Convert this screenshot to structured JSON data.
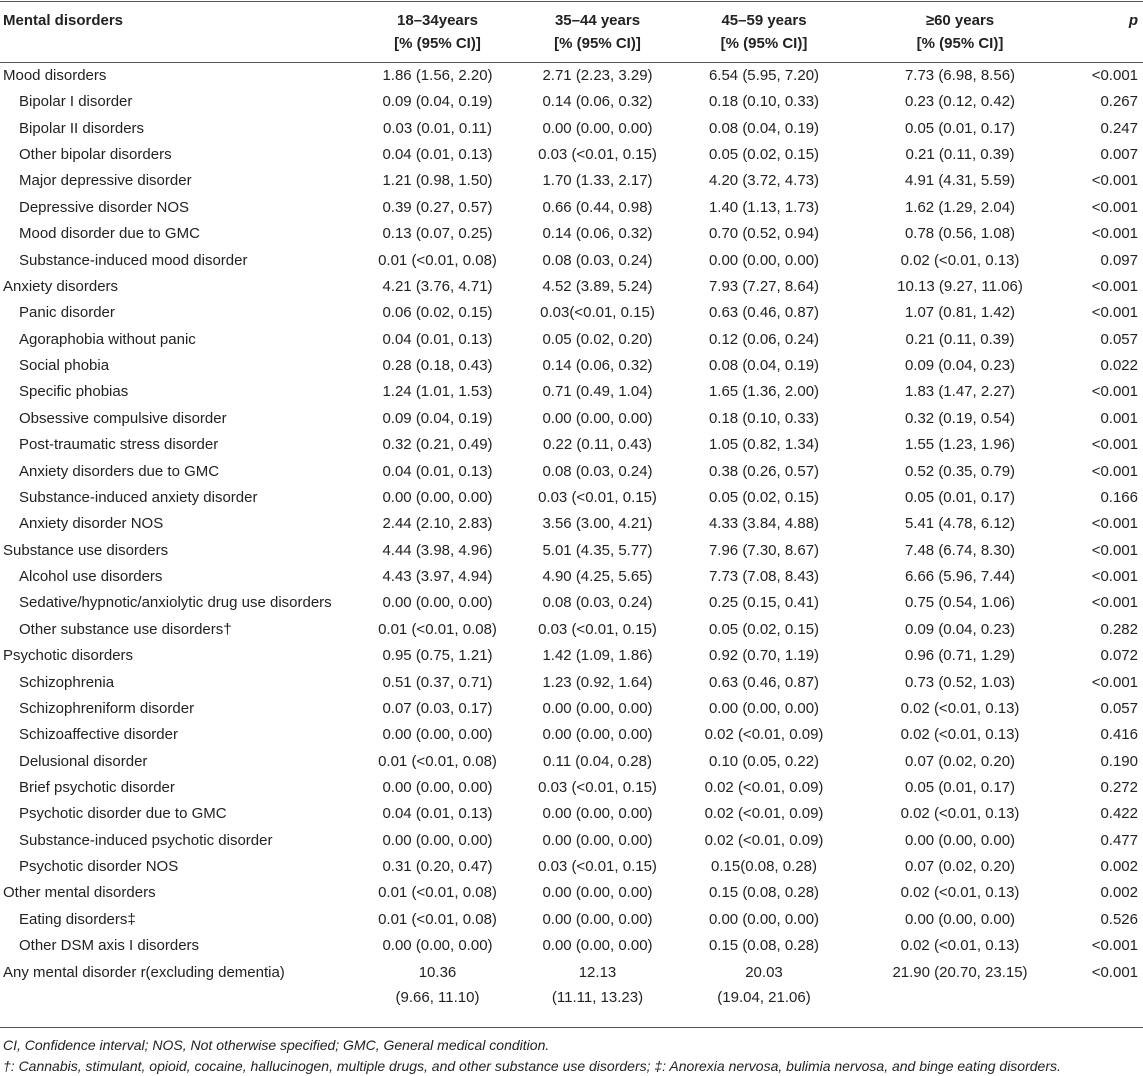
{
  "table": {
    "header": [
      "Mental disorders",
      "18–34years\n[% (95% CI)]",
      "35–44 years\n[% (95% CI)]",
      "45–59 years\n[% (95% CI)]",
      "≥60 years\n[% (95% CI)]",
      "p"
    ],
    "groups": [
      {
        "row": [
          "Mood disorders",
          "1.86 (1.56, 2.20)",
          "2.71 (2.23, 3.29)",
          "6.54 (5.95, 7.20)",
          "7.73 (6.98, 8.56)",
          "<0.001"
        ],
        "items": [
          [
            "Bipolar I disorder",
            "0.09 (0.04, 0.19)",
            "0.14 (0.06, 0.32)",
            "0.18 (0.10, 0.33)",
            "0.23 (0.12, 0.42)",
            "0.267"
          ],
          [
            "Bipolar II disorders",
            "0.03 (0.01, 0.11)",
            "0.00 (0.00, 0.00)",
            "0.08 (0.04, 0.19)",
            "0.05 (0.01, 0.17)",
            "0.247"
          ],
          [
            "Other bipolar disorders",
            "0.04 (0.01, 0.13)",
            "0.03 (<0.01, 0.15)",
            "0.05 (0.02, 0.15)",
            "0.21 (0.11, 0.39)",
            "0.007"
          ],
          [
            "Major depressive disorder",
            "1.21 (0.98, 1.50)",
            "1.70 (1.33, 2.17)",
            "4.20 (3.72, 4.73)",
            "4.91 (4.31, 5.59)",
            "<0.001"
          ],
          [
            "Depressive disorder NOS",
            "0.39 (0.27, 0.57)",
            "0.66 (0.44, 0.98)",
            "1.40 (1.13, 1.73)",
            "1.62 (1.29, 2.04)",
            "<0.001"
          ],
          [
            "Mood disorder due to GMC",
            "0.13 (0.07, 0.25)",
            "0.14 (0.06, 0.32)",
            "0.70 (0.52, 0.94)",
            "0.78 (0.56, 1.08)",
            "<0.001"
          ],
          [
            "Substance-induced mood disorder",
            "0.01 (<0.01, 0.08)",
            "0.08 (0.03, 0.24)",
            "0.00 (0.00, 0.00)",
            "0.02 (<0.01, 0.13)",
            "0.097"
          ]
        ]
      },
      {
        "row": [
          "Anxiety disorders",
          "4.21 (3.76, 4.71)",
          "4.52 (3.89, 5.24)",
          "7.93 (7.27, 8.64)",
          "10.13 (9.27, 11.06)",
          "<0.001"
        ],
        "items": [
          [
            "Panic disorder",
            "0.06 (0.02, 0.15)",
            "0.03(<0.01, 0.15)",
            "0.63 (0.46, 0.87)",
            "1.07 (0.81, 1.42)",
            "<0.001"
          ],
          [
            "Agoraphobia without panic",
            "0.04 (0.01, 0.13)",
            "0.05 (0.02, 0.20)",
            "0.12 (0.06, 0.24)",
            "0.21 (0.11, 0.39)",
            "0.057"
          ],
          [
            "Social phobia",
            "0.28 (0.18, 0.43)",
            "0.14 (0.06, 0.32)",
            "0.08 (0.04, 0.19)",
            "0.09 (0.04, 0.23)",
            "0.022"
          ],
          [
            "Specific phobias",
            "1.24 (1.01, 1.53)",
            "0.71 (0.49, 1.04)",
            "1.65 (1.36, 2.00)",
            "1.83 (1.47, 2.27)",
            "<0.001"
          ],
          [
            "Obsessive compulsive disorder",
            "0.09 (0.04, 0.19)",
            "0.00 (0.00, 0.00)",
            "0.18 (0.10, 0.33)",
            "0.32 (0.19, 0.54)",
            "0.001"
          ],
          [
            "Post-traumatic stress disorder",
            "0.32 (0.21, 0.49)",
            "0.22 (0.11, 0.43)",
            "1.05 (0.82, 1.34)",
            "1.55 (1.23, 1.96)",
            "<0.001"
          ],
          [
            "Anxiety disorders due to GMC",
            "0.04 (0.01, 0.13)",
            "0.08 (0.03, 0.24)",
            "0.38 (0.26, 0.57)",
            "0.52 (0.35, 0.79)",
            "<0.001"
          ],
          [
            "Substance-induced anxiety disorder",
            "0.00 (0.00, 0.00)",
            "0.03 (<0.01, 0.15)",
            "0.05 (0.02, 0.15)",
            "0.05 (0.01, 0.17)",
            "0.166"
          ],
          [
            "Anxiety disorder NOS",
            "2.44 (2.10, 2.83)",
            "3.56 (3.00, 4.21)",
            "4.33 (3.84, 4.88)",
            "5.41 (4.78, 6.12)",
            "<0.001"
          ]
        ]
      },
      {
        "row": [
          "Substance use disorders",
          "4.44 (3.98, 4.96)",
          "5.01 (4.35, 5.77)",
          "7.96 (7.30, 8.67)",
          "7.48 (6.74, 8.30)",
          "<0.001"
        ],
        "items": [
          [
            "Alcohol use disorders",
            "4.43 (3.97, 4.94)",
            "4.90 (4.25, 5.65)",
            "7.73 (7.08, 8.43)",
            "6.66 (5.96, 7.44)",
            "<0.001"
          ],
          [
            "Sedative/hypnotic/anxiolytic drug use disorders",
            "0.00 (0.00, 0.00)",
            "0.08 (0.03, 0.24)",
            "0.25 (0.15, 0.41)",
            "0.75 (0.54, 1.06)",
            "<0.001"
          ],
          [
            "Other substance use disorders†",
            "0.01 (<0.01, 0.08)",
            "0.03 (<0.01, 0.15)",
            "0.05 (0.02, 0.15)",
            "0.09 (0.04, 0.23)",
            "0.282"
          ]
        ]
      },
      {
        "row": [
          "Psychotic disorders",
          "0.95 (0.75, 1.21)",
          "1.42 (1.09, 1.86)",
          "0.92 (0.70, 1.19)",
          "0.96 (0.71, 1.29)",
          "0.072"
        ],
        "items": [
          [
            "Schizophrenia",
            "0.51 (0.37, 0.71)",
            "1.23 (0.92, 1.64)",
            "0.63 (0.46, 0.87)",
            "0.73 (0.52, 1.03)",
            "<0.001"
          ],
          [
            "Schizophreniform disorder",
            "0.07 (0.03, 0.17)",
            "0.00 (0.00, 0.00)",
            "0.00 (0.00, 0.00)",
            "0.02 (<0.01, 0.13)",
            "0.057"
          ],
          [
            "Schizoaffective disorder",
            "0.00 (0.00, 0.00)",
            "0.00 (0.00, 0.00)",
            "0.02 (<0.01, 0.09)",
            "0.02 (<0.01, 0.13)",
            "0.416"
          ],
          [
            "Delusional disorder",
            "0.01 (<0.01, 0.08)",
            "0.11 (0.04, 0.28)",
            "0.10 (0.05, 0.22)",
            "0.07 (0.02, 0.20)",
            "0.190"
          ],
          [
            "Brief psychotic disorder",
            "0.00 (0.00, 0.00)",
            "0.03 (<0.01, 0.15)",
            "0.02 (<0.01, 0.09)",
            "0.05 (0.01, 0.17)",
            "0.272"
          ],
          [
            "Psychotic disorder due to GMC",
            "0.04 (0.01, 0.13)",
            "0.00 (0.00, 0.00)",
            "0.02 (<0.01, 0.09)",
            "0.02 (<0.01, 0.13)",
            "0.422"
          ],
          [
            "Substance-induced psychotic disorder",
            "0.00 (0.00, 0.00)",
            "0.00 (0.00, 0.00)",
            "0.02 (<0.01, 0.09)",
            "0.00 (0.00, 0.00)",
            "0.477"
          ],
          [
            "Psychotic disorder NOS",
            "0.31 (0.20, 0.47)",
            "0.03 (<0.01, 0.15)",
            "0.15(0.08, 0.28)",
            "0.07 (0.02, 0.20)",
            "0.002"
          ]
        ]
      },
      {
        "row": [
          "Other mental disorders",
          "0.01 (<0.01, 0.08)",
          "0.00 (0.00, 0.00)",
          "0.15 (0.08, 0.28)",
          "0.02 (<0.01, 0.13)",
          "0.002"
        ],
        "items": [
          [
            "Eating disorders‡",
            "0.01 (<0.01, 0.08)",
            "0.00 (0.00, 0.00)",
            "0.00 (0.00, 0.00)",
            "0.00 (0.00, 0.00)",
            "0.526"
          ],
          [
            "Other DSM axis I disorders",
            "0.00 (0.00, 0.00)",
            "0.00 (0.00, 0.00)",
            "0.15 (0.08, 0.28)",
            "0.02 (<0.01, 0.13)",
            "<0.001"
          ]
        ]
      },
      {
        "row": [
          "Any mental disorder r(excluding dementia)",
          "10.36\n(9.66, 11.10)",
          "12.13\n(11.11, 13.23)",
          "20.03\n(19.04, 21.06)",
          "21.90 (20.70, 23.15)",
          "<0.001"
        ],
        "items": []
      }
    ],
    "notes": [
      "CI, Confidence interval; NOS, Not otherwise specified; GMC, General medical condition.",
      "†: Cannabis, stimulant, opioid, cocaine, hallucinogen, multiple drugs, and other substance use disorders; ‡: Anorexia nervosa, bulimia nervosa, and binge eating disorders."
    ]
  }
}
